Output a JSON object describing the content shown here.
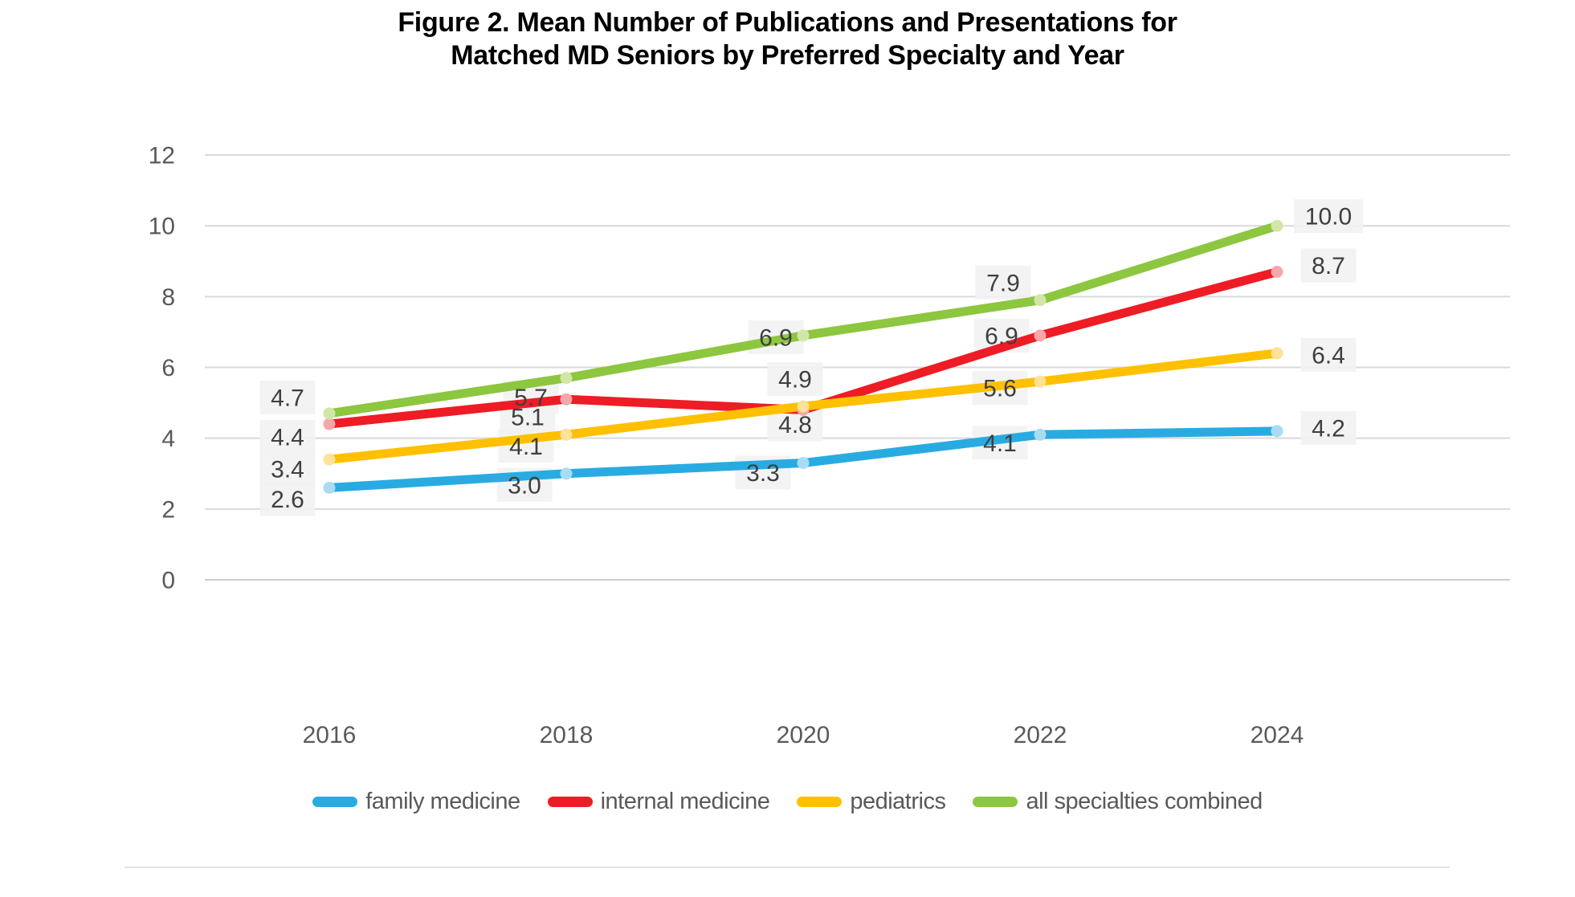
{
  "title": {
    "line1": "Figure 2. Mean Number of Publications and Presentations for",
    "line2": "Matched MD Seniors by Preferred Specialty and Year"
  },
  "chart_data": {
    "type": "line",
    "categories": [
      "2016",
      "2018",
      "2020",
      "2022",
      "2024"
    ],
    "series": [
      {
        "name": "family medicine",
        "color": "#29ABE2",
        "marker_color": "#A9DCF4",
        "values": [
          2.6,
          3.0,
          3.3,
          4.1,
          4.2
        ]
      },
      {
        "name": "internal medicine",
        "color": "#EE1C25",
        "marker_color": "#F8A6A9",
        "values": [
          4.4,
          5.1,
          4.8,
          6.9,
          8.7
        ]
      },
      {
        "name": "pediatrics",
        "color": "#FFC000",
        "marker_color": "#FFE199",
        "values": [
          3.4,
          4.1,
          4.9,
          5.6,
          6.4
        ]
      },
      {
        "name": "all specialties combined",
        "color": "#8DC63F",
        "marker_color": "#D1E7A8",
        "values": [
          4.7,
          5.7,
          6.9,
          7.9,
          10.0
        ]
      }
    ],
    "y_ticks": [
      0,
      2,
      4,
      6,
      8,
      10,
      12
    ],
    "ylim": [
      0,
      12
    ],
    "xlabel": "",
    "ylabel": "",
    "grid": true,
    "data_labels": true,
    "data_label_format": "one_decimal",
    "legend_position": "bottom",
    "colors": {
      "gridline": "#D9D9D9",
      "axis_text": "#595959",
      "data_label_text": "#3F3F3F",
      "data_label_bg": "#F2F2F2",
      "title_text": "#000000"
    }
  }
}
